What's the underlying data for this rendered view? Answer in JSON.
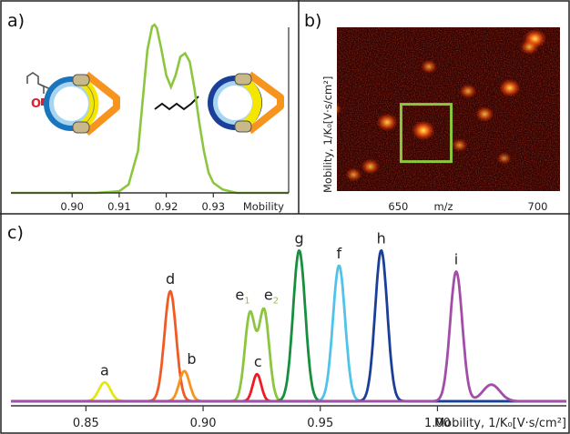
{
  "panels": {
    "a": {
      "letter": "a)"
    },
    "b": {
      "letter": "b)"
    },
    "c": {
      "letter": "c)"
    }
  },
  "chart_data": [
    {
      "panel": "a",
      "type": "line",
      "xlabel": "Mobility",
      "xlim": [
        0.887,
        0.946
      ],
      "ylim": [
        0,
        1.05
      ],
      "xticks": [
        0.9,
        0.91,
        0.92,
        0.93
      ],
      "xtick_labels": [
        "0.90",
        "0.91",
        "0.92",
        "0.93"
      ],
      "series": [
        {
          "color": "#8cc63f",
          "x": [
            0.887,
            0.905,
            0.91,
            0.912,
            0.914,
            0.915,
            0.916,
            0.917,
            0.9175,
            0.918,
            0.919,
            0.92,
            0.921,
            0.922,
            0.923,
            0.924,
            0.925,
            0.926,
            0.927,
            0.928,
            0.929,
            0.93,
            0.932,
            0.935,
            0.946
          ],
          "y": [
            0.0,
            0.0,
            0.01,
            0.05,
            0.25,
            0.55,
            0.85,
            0.99,
            1.0,
            0.98,
            0.85,
            0.7,
            0.63,
            0.7,
            0.81,
            0.83,
            0.78,
            0.62,
            0.42,
            0.25,
            0.12,
            0.06,
            0.02,
            0.0,
            0.0
          ]
        }
      ]
    },
    {
      "panel": "b",
      "type": "heatmap",
      "xlabel": "m/z",
      "ylabel": "Mobility, 1/K₀[V·s/cm²]",
      "xlim": [
        628,
        708
      ],
      "xticks": [
        650,
        700
      ],
      "xtick_labels": [
        "650",
        "700"
      ],
      "colors": [
        "#1a0000",
        "#ff3300",
        "#ffee66"
      ],
      "highlight_box": {
        "mz": [
          651,
          669
        ],
        "mobility": [
          0.18,
          0.53
        ]
      },
      "spots": [
        {
          "mz": 659,
          "mobility": 0.37,
          "intensity": 1.0
        },
        {
          "mz": 646,
          "mobility": 0.42,
          "intensity": 0.8
        },
        {
          "mz": 681,
          "mobility": 0.47,
          "intensity": 0.6
        },
        {
          "mz": 690,
          "mobility": 0.63,
          "intensity": 0.85
        },
        {
          "mz": 675,
          "mobility": 0.61,
          "intensity": 0.5
        },
        {
          "mz": 661,
          "mobility": 0.76,
          "intensity": 0.45
        },
        {
          "mz": 699,
          "mobility": 0.93,
          "intensity": 0.95
        },
        {
          "mz": 697,
          "mobility": 0.88,
          "intensity": 0.6
        },
        {
          "mz": 640,
          "mobility": 0.15,
          "intensity": 0.6
        },
        {
          "mz": 634,
          "mobility": 0.1,
          "intensity": 0.45
        },
        {
          "mz": 672,
          "mobility": 0.28,
          "intensity": 0.4
        },
        {
          "mz": 627,
          "mobility": 0.5,
          "intensity": 0.35
        },
        {
          "mz": 688,
          "mobility": 0.2,
          "intensity": 0.3
        }
      ]
    },
    {
      "panel": "c",
      "type": "line",
      "xlabel": "Mobility, 1/K₀[V·s/cm²]",
      "xlim": [
        0.818,
        1.055
      ],
      "ylim": [
        0,
        1.08
      ],
      "xticks": [
        0.85,
        0.9,
        0.95,
        1.0
      ],
      "xtick_labels": [
        "0.85",
        "0.90",
        "0.95",
        "1.00"
      ],
      "peaks": [
        {
          "label": "a",
          "color": "#e6e617",
          "center": 0.858,
          "height": 0.125,
          "sigma": 0.0025
        },
        {
          "label": "d",
          "color": "#f15a24",
          "center": 0.886,
          "height": 0.73,
          "sigma": 0.0025
        },
        {
          "label": "b",
          "color": "#f7931e",
          "center": 0.892,
          "height": 0.2,
          "sigma": 0.0022
        },
        {
          "label": "e",
          "sub": "1",
          "label2": "e",
          "sub2": "2",
          "color": "#8cc63f",
          "center": 0.92,
          "center2": 0.926,
          "height": 0.58,
          "height2": 0.6,
          "sigma": 0.0022
        },
        {
          "label": "c",
          "color": "#ed1c24",
          "center": 0.923,
          "height": 0.18,
          "sigma": 0.0018
        },
        {
          "label": "g",
          "color": "#168f3e",
          "center": 0.941,
          "height": 1.0,
          "sigma": 0.0026
        },
        {
          "label": "f",
          "color": "#4fc3e8",
          "center": 0.958,
          "height": 0.9,
          "sigma": 0.0026
        },
        {
          "label": "h",
          "color": "#1b3f99",
          "center": 0.976,
          "height": 1.0,
          "sigma": 0.0026
        },
        {
          "label": "i",
          "color": "#a24da8",
          "center": 1.008,
          "height": 0.86,
          "sigma": 0.0026,
          "minor_center": 1.023,
          "minor_height": 0.11
        }
      ]
    }
  ]
}
